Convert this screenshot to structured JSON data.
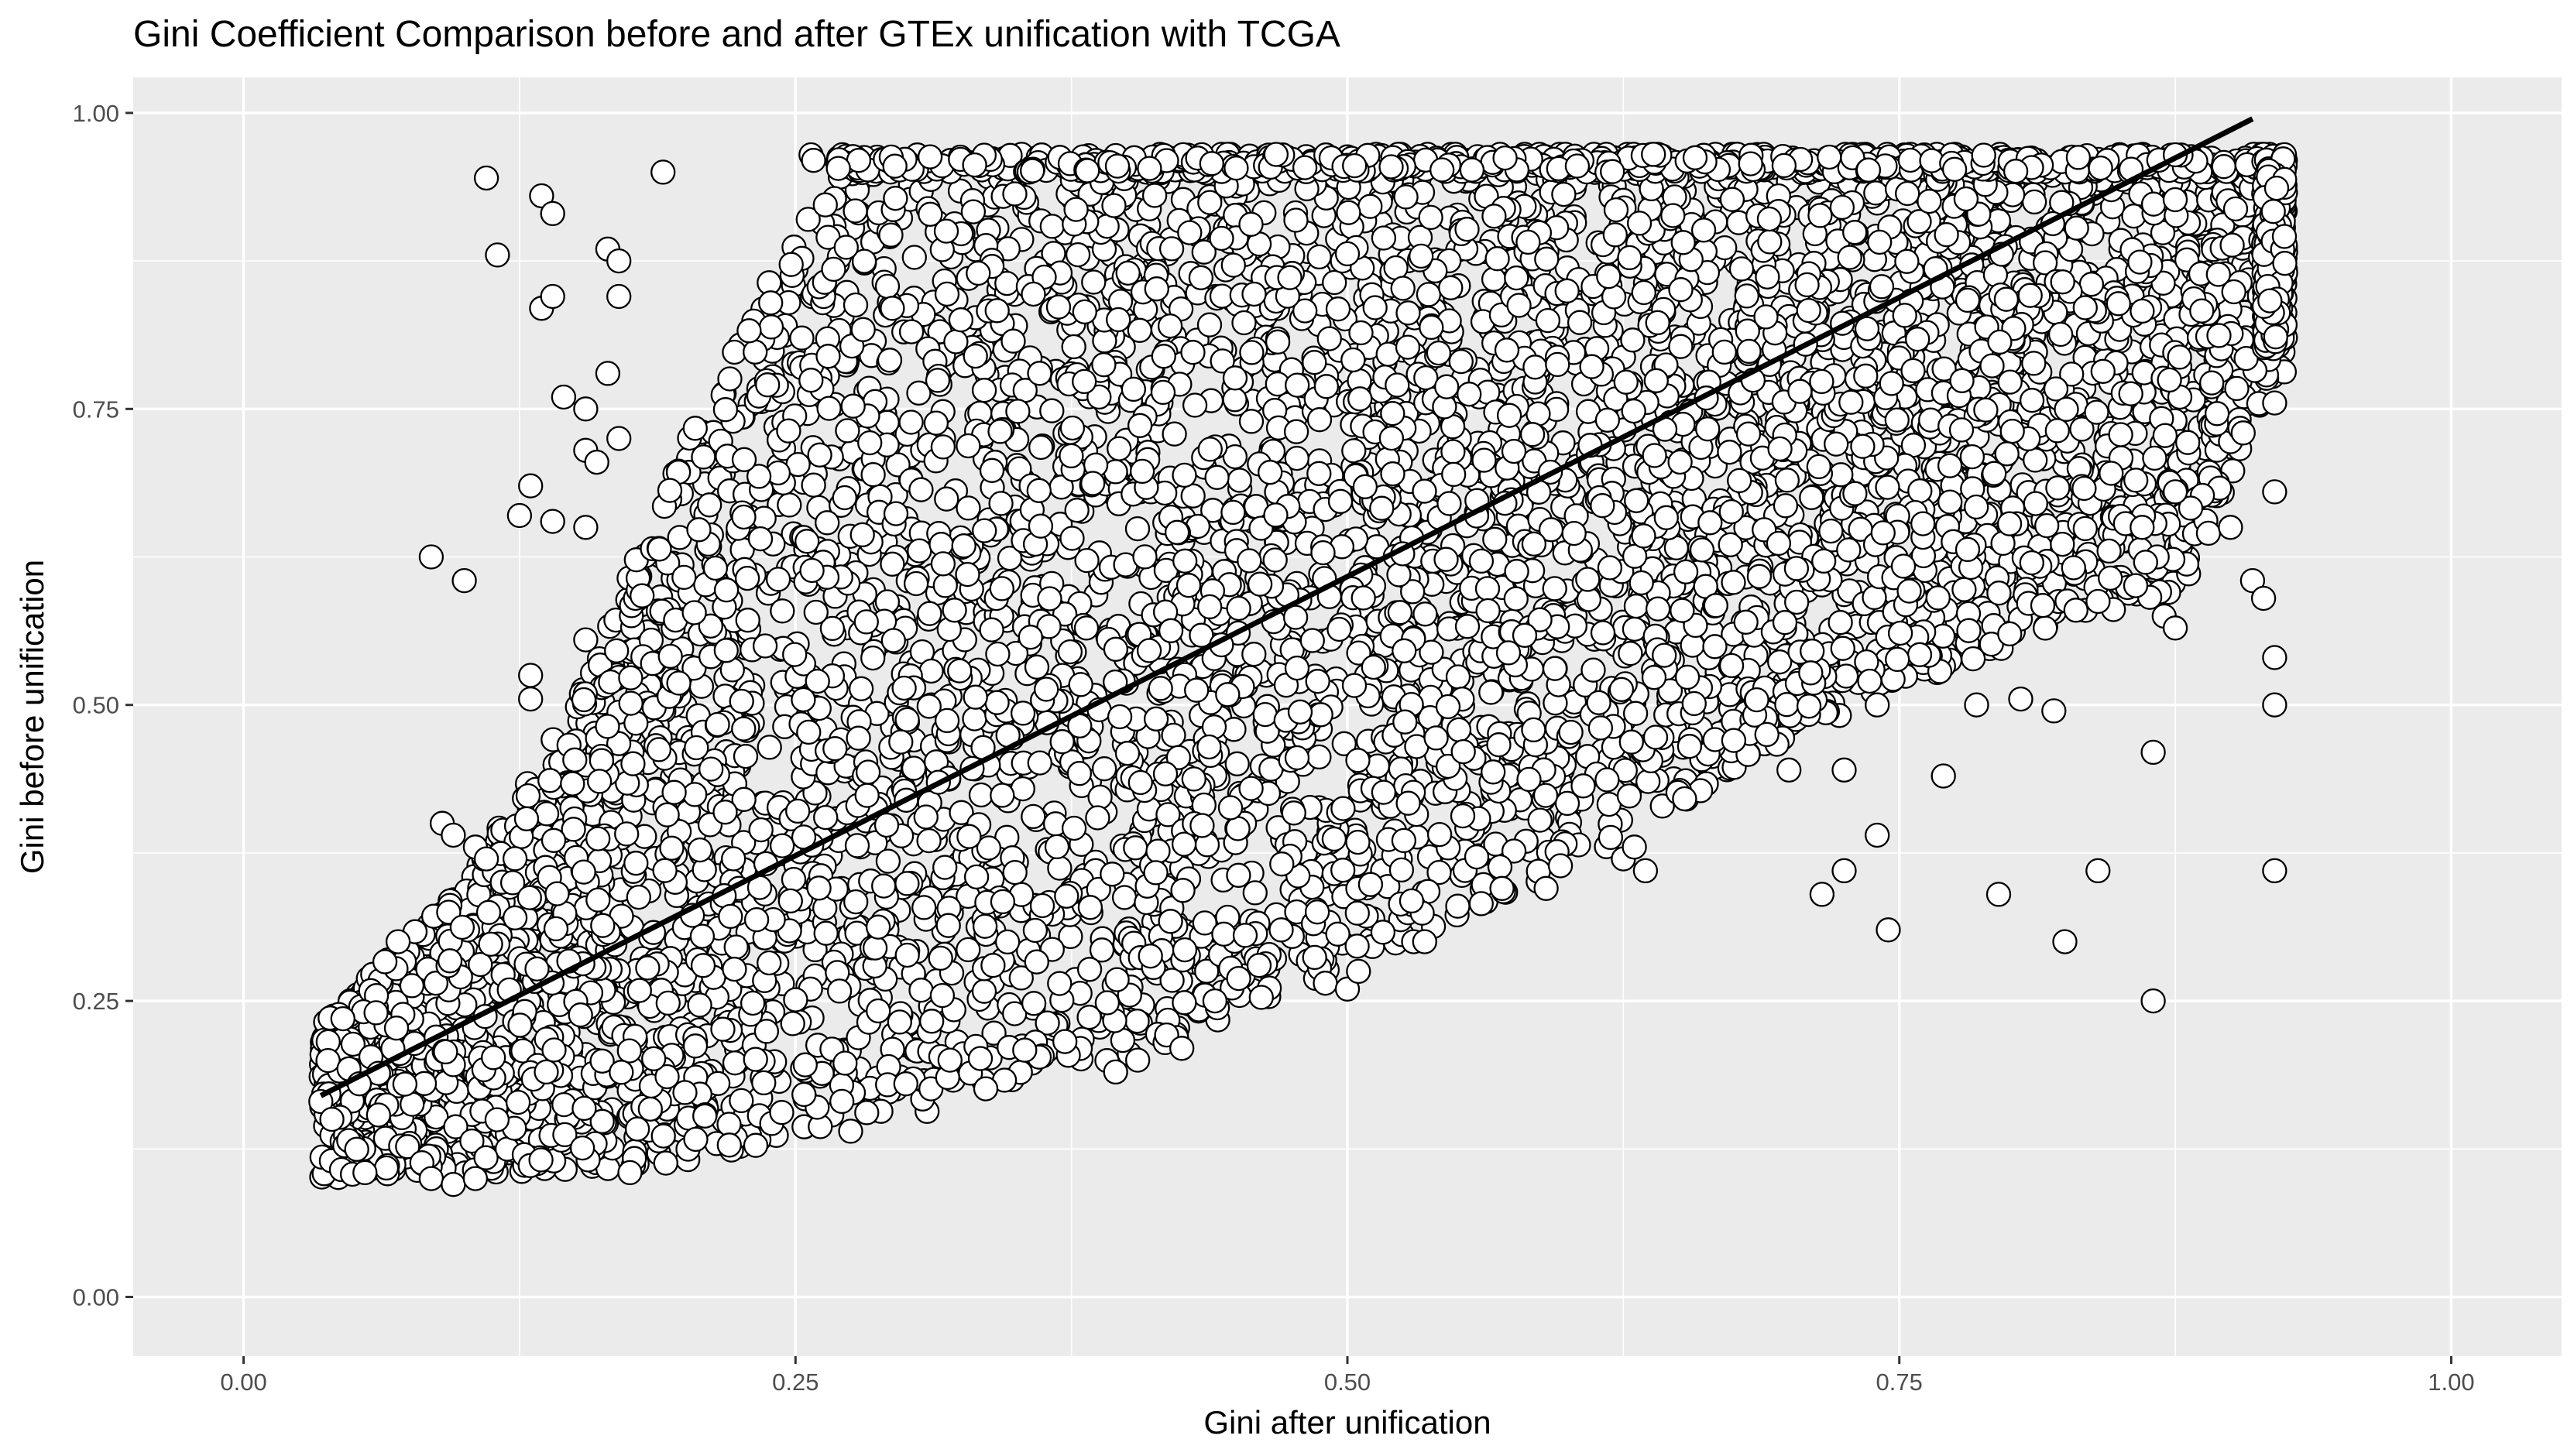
{
  "chart_data": {
    "type": "scatter",
    "title": "Gini Coefficient Comparison before and after GTEx unification with TCGA",
    "xlabel": "Gini after unification",
    "ylabel": "Gini before unification",
    "xlim": [
      -0.05,
      1.05
    ],
    "ylim": [
      -0.05,
      1.03
    ],
    "x_ticks": [
      0.0,
      0.25,
      0.5,
      0.75,
      1.0
    ],
    "x_tick_labels": [
      "0.00",
      "0.25",
      "0.50",
      "0.75",
      "1.00"
    ],
    "y_ticks": [
      0.0,
      0.25,
      0.5,
      0.75,
      1.0
    ],
    "y_tick_labels": [
      "0.00",
      "0.25",
      "0.50",
      "0.75",
      "1.00"
    ],
    "grid": true,
    "panel_background": "#ebebeb",
    "point_style": {
      "fill": "#ffffff",
      "stroke": "#000000",
      "shape": "circle"
    },
    "fit_line": {
      "color": "#000000",
      "x": [
        0.035,
        0.91
      ],
      "y": [
        0.17,
        0.995
      ]
    },
    "series": [
      {
        "points": [
          [
            0.11,
            0.945
          ],
          [
            0.115,
            0.88
          ],
          [
            0.135,
            0.93
          ],
          [
            0.14,
            0.915
          ],
          [
            0.19,
            0.95
          ],
          [
            0.135,
            0.835
          ],
          [
            0.14,
            0.845
          ],
          [
            0.165,
            0.885
          ],
          [
            0.17,
            0.845
          ],
          [
            0.17,
            0.875
          ],
          [
            0.145,
            0.76
          ],
          [
            0.155,
            0.75
          ],
          [
            0.165,
            0.78
          ],
          [
            0.17,
            0.725
          ],
          [
            0.155,
            0.715
          ],
          [
            0.16,
            0.705
          ],
          [
            0.13,
            0.685
          ],
          [
            0.125,
            0.66
          ],
          [
            0.14,
            0.655
          ],
          [
            0.155,
            0.65
          ],
          [
            0.085,
            0.625
          ],
          [
            0.1,
            0.605
          ],
          [
            0.13,
            0.525
          ],
          [
            0.13,
            0.505
          ],
          [
            0.155,
            0.555
          ],
          [
            0.275,
            0.14
          ],
          [
            0.09,
            0.4
          ],
          [
            0.095,
            0.39
          ],
          [
            0.105,
            0.38
          ],
          [
            0.11,
            0.37
          ],
          [
            0.055,
            0.105
          ],
          [
            0.085,
            0.1
          ],
          [
            0.095,
            0.095
          ],
          [
            0.105,
            0.1
          ],
          [
            0.175,
            0.105
          ],
          [
            0.035,
            0.165
          ],
          [
            0.04,
            0.15
          ],
          [
            0.045,
            0.235
          ],
          [
            0.06,
            0.24
          ],
          [
            0.07,
            0.3
          ],
          [
            0.395,
            0.19
          ],
          [
            0.405,
            0.2
          ],
          [
            0.425,
            0.21
          ],
          [
            0.49,
            0.265
          ],
          [
            0.5,
            0.26
          ],
          [
            0.505,
            0.275
          ],
          [
            0.53,
            0.3
          ],
          [
            0.535,
            0.3
          ],
          [
            0.55,
            0.33
          ],
          [
            0.57,
            0.345
          ],
          [
            0.59,
            0.345
          ],
          [
            0.625,
            0.37
          ],
          [
            0.63,
            0.38
          ],
          [
            0.635,
            0.36
          ],
          [
            0.655,
            0.465
          ],
          [
            0.675,
            0.47
          ],
          [
            0.69,
            0.475
          ],
          [
            0.7,
            0.445
          ],
          [
            0.715,
            0.34
          ],
          [
            0.725,
            0.36
          ],
          [
            0.725,
            0.445
          ],
          [
            0.74,
            0.39
          ],
          [
            0.745,
            0.31
          ],
          [
            0.74,
            0.5
          ],
          [
            0.77,
            0.44
          ],
          [
            0.795,
            0.34
          ],
          [
            0.825,
            0.3
          ],
          [
            0.84,
            0.36
          ],
          [
            0.865,
            0.46
          ],
          [
            0.865,
            0.25
          ],
          [
            0.87,
            0.575
          ],
          [
            0.875,
            0.565
          ],
          [
            0.89,
            0.645
          ],
          [
            0.9,
            0.65
          ],
          [
            0.91,
            0.605
          ],
          [
            0.915,
            0.59
          ],
          [
            0.92,
            0.54
          ],
          [
            0.92,
            0.5
          ],
          [
            0.92,
            0.36
          ],
          [
            0.92,
            0.68
          ],
          [
            0.92,
            0.755
          ],
          [
            0.82,
            0.495
          ],
          [
            0.805,
            0.505
          ],
          [
            0.785,
            0.5
          ],
          [
            0.8,
            0.56
          ],
          [
            0.81,
            0.62
          ],
          [
            0.83,
            0.58
          ],
          [
            0.845,
            0.63
          ],
          [
            0.86,
            0.65
          ],
          [
            0.875,
            0.68
          ],
          [
            0.44,
            0.25
          ],
          [
            0.46,
            0.28
          ],
          [
            0.47,
            0.31
          ],
          [
            0.3,
            0.18
          ],
          [
            0.32,
            0.2
          ]
        ]
      }
    ],
    "cloud": {
      "lower_edge": [
        [
          0.03,
          0.1
        ],
        [
          0.2,
          0.11
        ],
        [
          0.3,
          0.15
        ],
        [
          0.4,
          0.2
        ],
        [
          0.5,
          0.28
        ],
        [
          0.6,
          0.36
        ],
        [
          0.7,
          0.47
        ],
        [
          0.8,
          0.55
        ],
        [
          0.88,
          0.6
        ],
        [
          0.92,
          0.78
        ]
      ],
      "upper_edge": [
        [
          0.03,
          0.22
        ],
        [
          0.1,
          0.35
        ],
        [
          0.15,
          0.5
        ],
        [
          0.2,
          0.72
        ],
        [
          0.25,
          0.9
        ],
        [
          0.28,
          0.97
        ],
        [
          0.92,
          0.97
        ]
      ],
      "y_cap": 0.965,
      "x_cap": 0.925
    }
  }
}
